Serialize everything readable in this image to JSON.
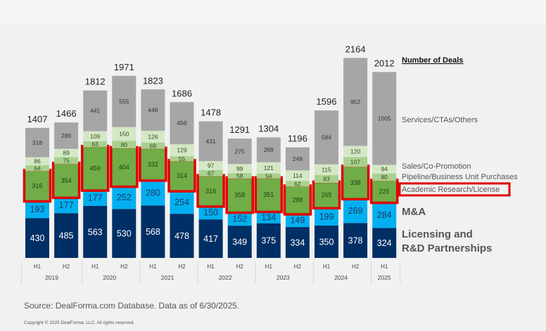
{
  "chart_data": {
    "type": "bar",
    "stacked": true,
    "title": "Number of Deals",
    "xlabel": "",
    "ylabel": "",
    "categories": [
      "H1",
      "H2",
      "H1",
      "H2",
      "H1",
      "H2",
      "H1",
      "H2",
      "H1",
      "H2",
      "H1",
      "H2",
      "H1"
    ],
    "years": [
      {
        "label": "2019",
        "span": 2
      },
      {
        "label": "2020",
        "span": 2
      },
      {
        "label": "2021",
        "span": 2
      },
      {
        "label": "2022",
        "span": 2
      },
      {
        "label": "2023",
        "span": 2
      },
      {
        "label": "2024",
        "span": 2
      },
      {
        "label": "2025",
        "span": 1
      }
    ],
    "series": [
      {
        "name": "Licensing and R&D Partnerships",
        "legend_lines": [
          "Licensing and",
          "R&D Partnerships"
        ],
        "color": "#002f65",
        "label_color": "#ffffff",
        "values": [
          430,
          485,
          563,
          530,
          568,
          478,
          417,
          349,
          375,
          334,
          350,
          378,
          324
        ]
      },
      {
        "name": "M&A",
        "legend_lines": [
          "M&A"
        ],
        "color": "#00b0f0",
        "label_color": "#1f3864",
        "values": [
          193,
          177,
          177,
          252,
          280,
          254,
          150,
          152,
          134,
          149,
          199,
          269,
          284
        ]
      },
      {
        "name": "Academic Research/License",
        "legend_lines": [
          "Academic Research/License"
        ],
        "color": "#70ad47",
        "label_color": "#1e3a0e",
        "highlighted": true,
        "values": [
          316,
          354,
          459,
          404,
          332,
          314,
          316,
          358,
          351,
          288,
          265,
          338,
          225
        ]
      },
      {
        "name": "Pipeline/Business Unit Purchases",
        "legend_lines": [
          "Pipeline/Business Unit Purchases"
        ],
        "color": "#a9d18e",
        "label_color": "#2e4a1c",
        "values": [
          64,
          75,
          63,
          80,
          69,
          55,
          67,
          58,
          54,
          62,
          83,
          107,
          80
        ]
      },
      {
        "name": "Sales/Co-Promotion",
        "legend_lines": [
          "Sales/Co-Promotion"
        ],
        "color": "#d4e8c6",
        "label_color": "#2e4a1c",
        "values": [
          86,
          89,
          109,
          150,
          126,
          129,
          97,
          99,
          121,
          114,
          115,
          120,
          94
        ]
      },
      {
        "name": "Services/CTAs/Others",
        "legend_lines": [
          "Services/CTAs/Others"
        ],
        "color": "#a6a6a6",
        "label_color": "#333333",
        "values": [
          318,
          286,
          441,
          555,
          448,
          456,
          431,
          275,
          269,
          249,
          584,
          952,
          1005
        ]
      }
    ],
    "totals": [
      1407,
      1466,
      1812,
      1971,
      1823,
      1686,
      1478,
      1291,
      1304,
      1196,
      1596,
      2164,
      2012
    ],
    "ylim": [
      0,
      2200
    ],
    "grid": false,
    "legend": "right",
    "highlight_color": "#e00000"
  },
  "footer": {
    "source": "Source: DealForma.com Database. Data as of 6/30/2025.",
    "copyright": "Copyright © 2025 DealForma, LLC. All rights reserved."
  }
}
